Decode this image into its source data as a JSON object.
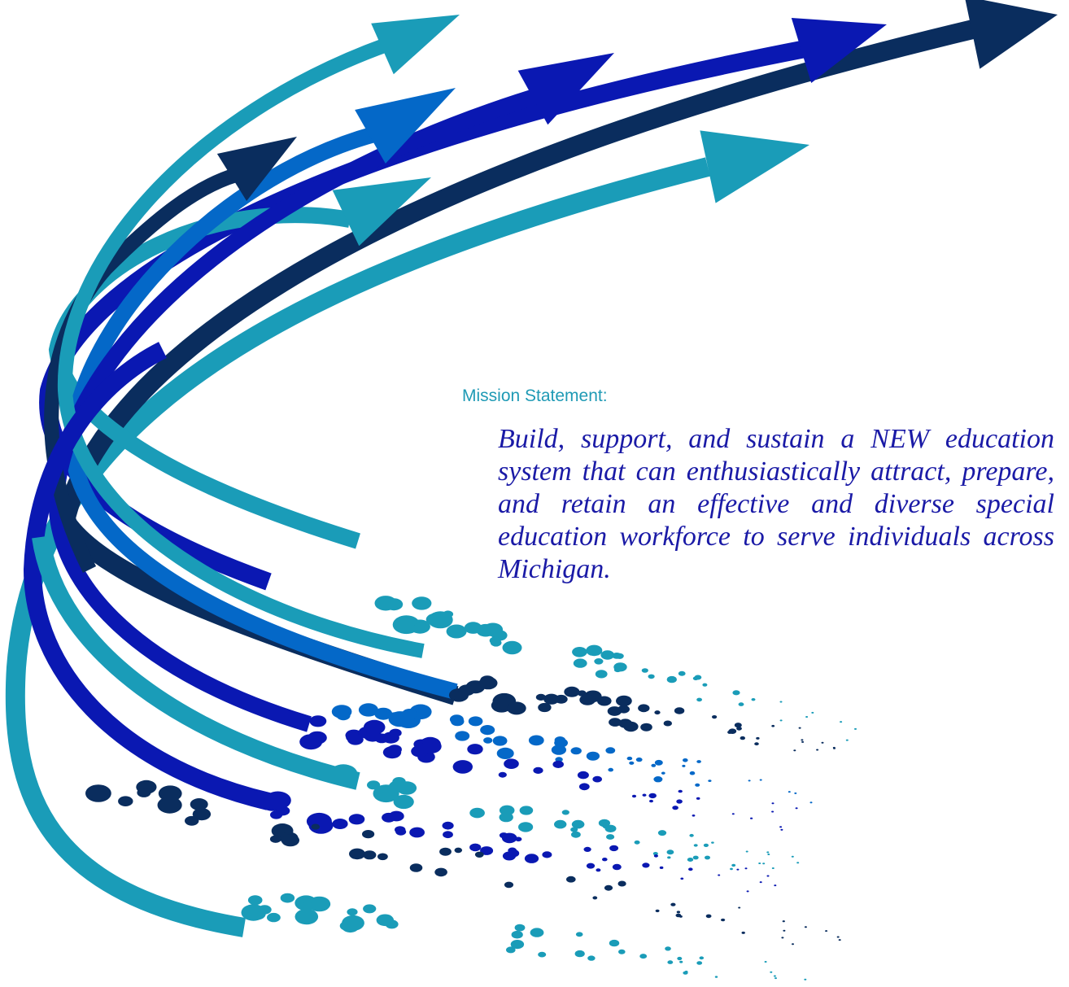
{
  "mission": {
    "label": "Mission Statement:",
    "text": "Build, support, and sustain a NEW education system that can enthusiastically attract, prepare, and retain an effective and diverse special education workforce to serve individuals across Michigan."
  },
  "colors": {
    "label": "#1f9ab5",
    "text": "#1a1aa6",
    "teal": "#1a9cb8",
    "navy": "#0a2d5e",
    "royal": "#0a18b2",
    "azure": "#0468c8"
  },
  "graphic": {
    "name": "swoosh-arrows-illustration"
  }
}
